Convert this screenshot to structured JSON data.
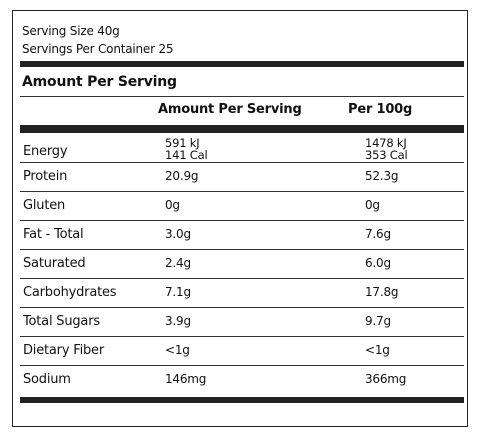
{
  "header": {
    "serving_size": "Serving Size 40g",
    "servings_per_container": "Servings Per Container 25",
    "section_title": "Amount Per Serving"
  },
  "columns": {
    "per_serving": "Amount Per Serving",
    "per_100g": "Per 100g"
  },
  "rows": [
    {
      "name": "Energy",
      "per_serving": [
        "591 kJ",
        "141 Cal"
      ],
      "per_100g": [
        "1478 kJ",
        "353 Cal"
      ]
    },
    {
      "name": "Protein",
      "per_serving": "20.9g",
      "per_100g": "52.3g"
    },
    {
      "name": "Gluten",
      "per_serving": "0g",
      "per_100g": "0g"
    },
    {
      "name": "Fat - Total",
      "per_serving": "3.0g",
      "per_100g": "7.6g"
    },
    {
      "name": "Saturated",
      "per_serving": "2.4g",
      "per_100g": "6.0g"
    },
    {
      "name": "Carbohydrates",
      "per_serving": "7.1g",
      "per_100g": "17.8g"
    },
    {
      "name": "Total Sugars",
      "per_serving": "3.9g",
      "per_100g": "9.7g"
    },
    {
      "name": "Dietary Fiber",
      "per_serving": "<1g",
      "per_100g": "<1g"
    },
    {
      "name": "Sodium",
      "per_serving": "146mg",
      "per_100g": "366mg"
    }
  ]
}
